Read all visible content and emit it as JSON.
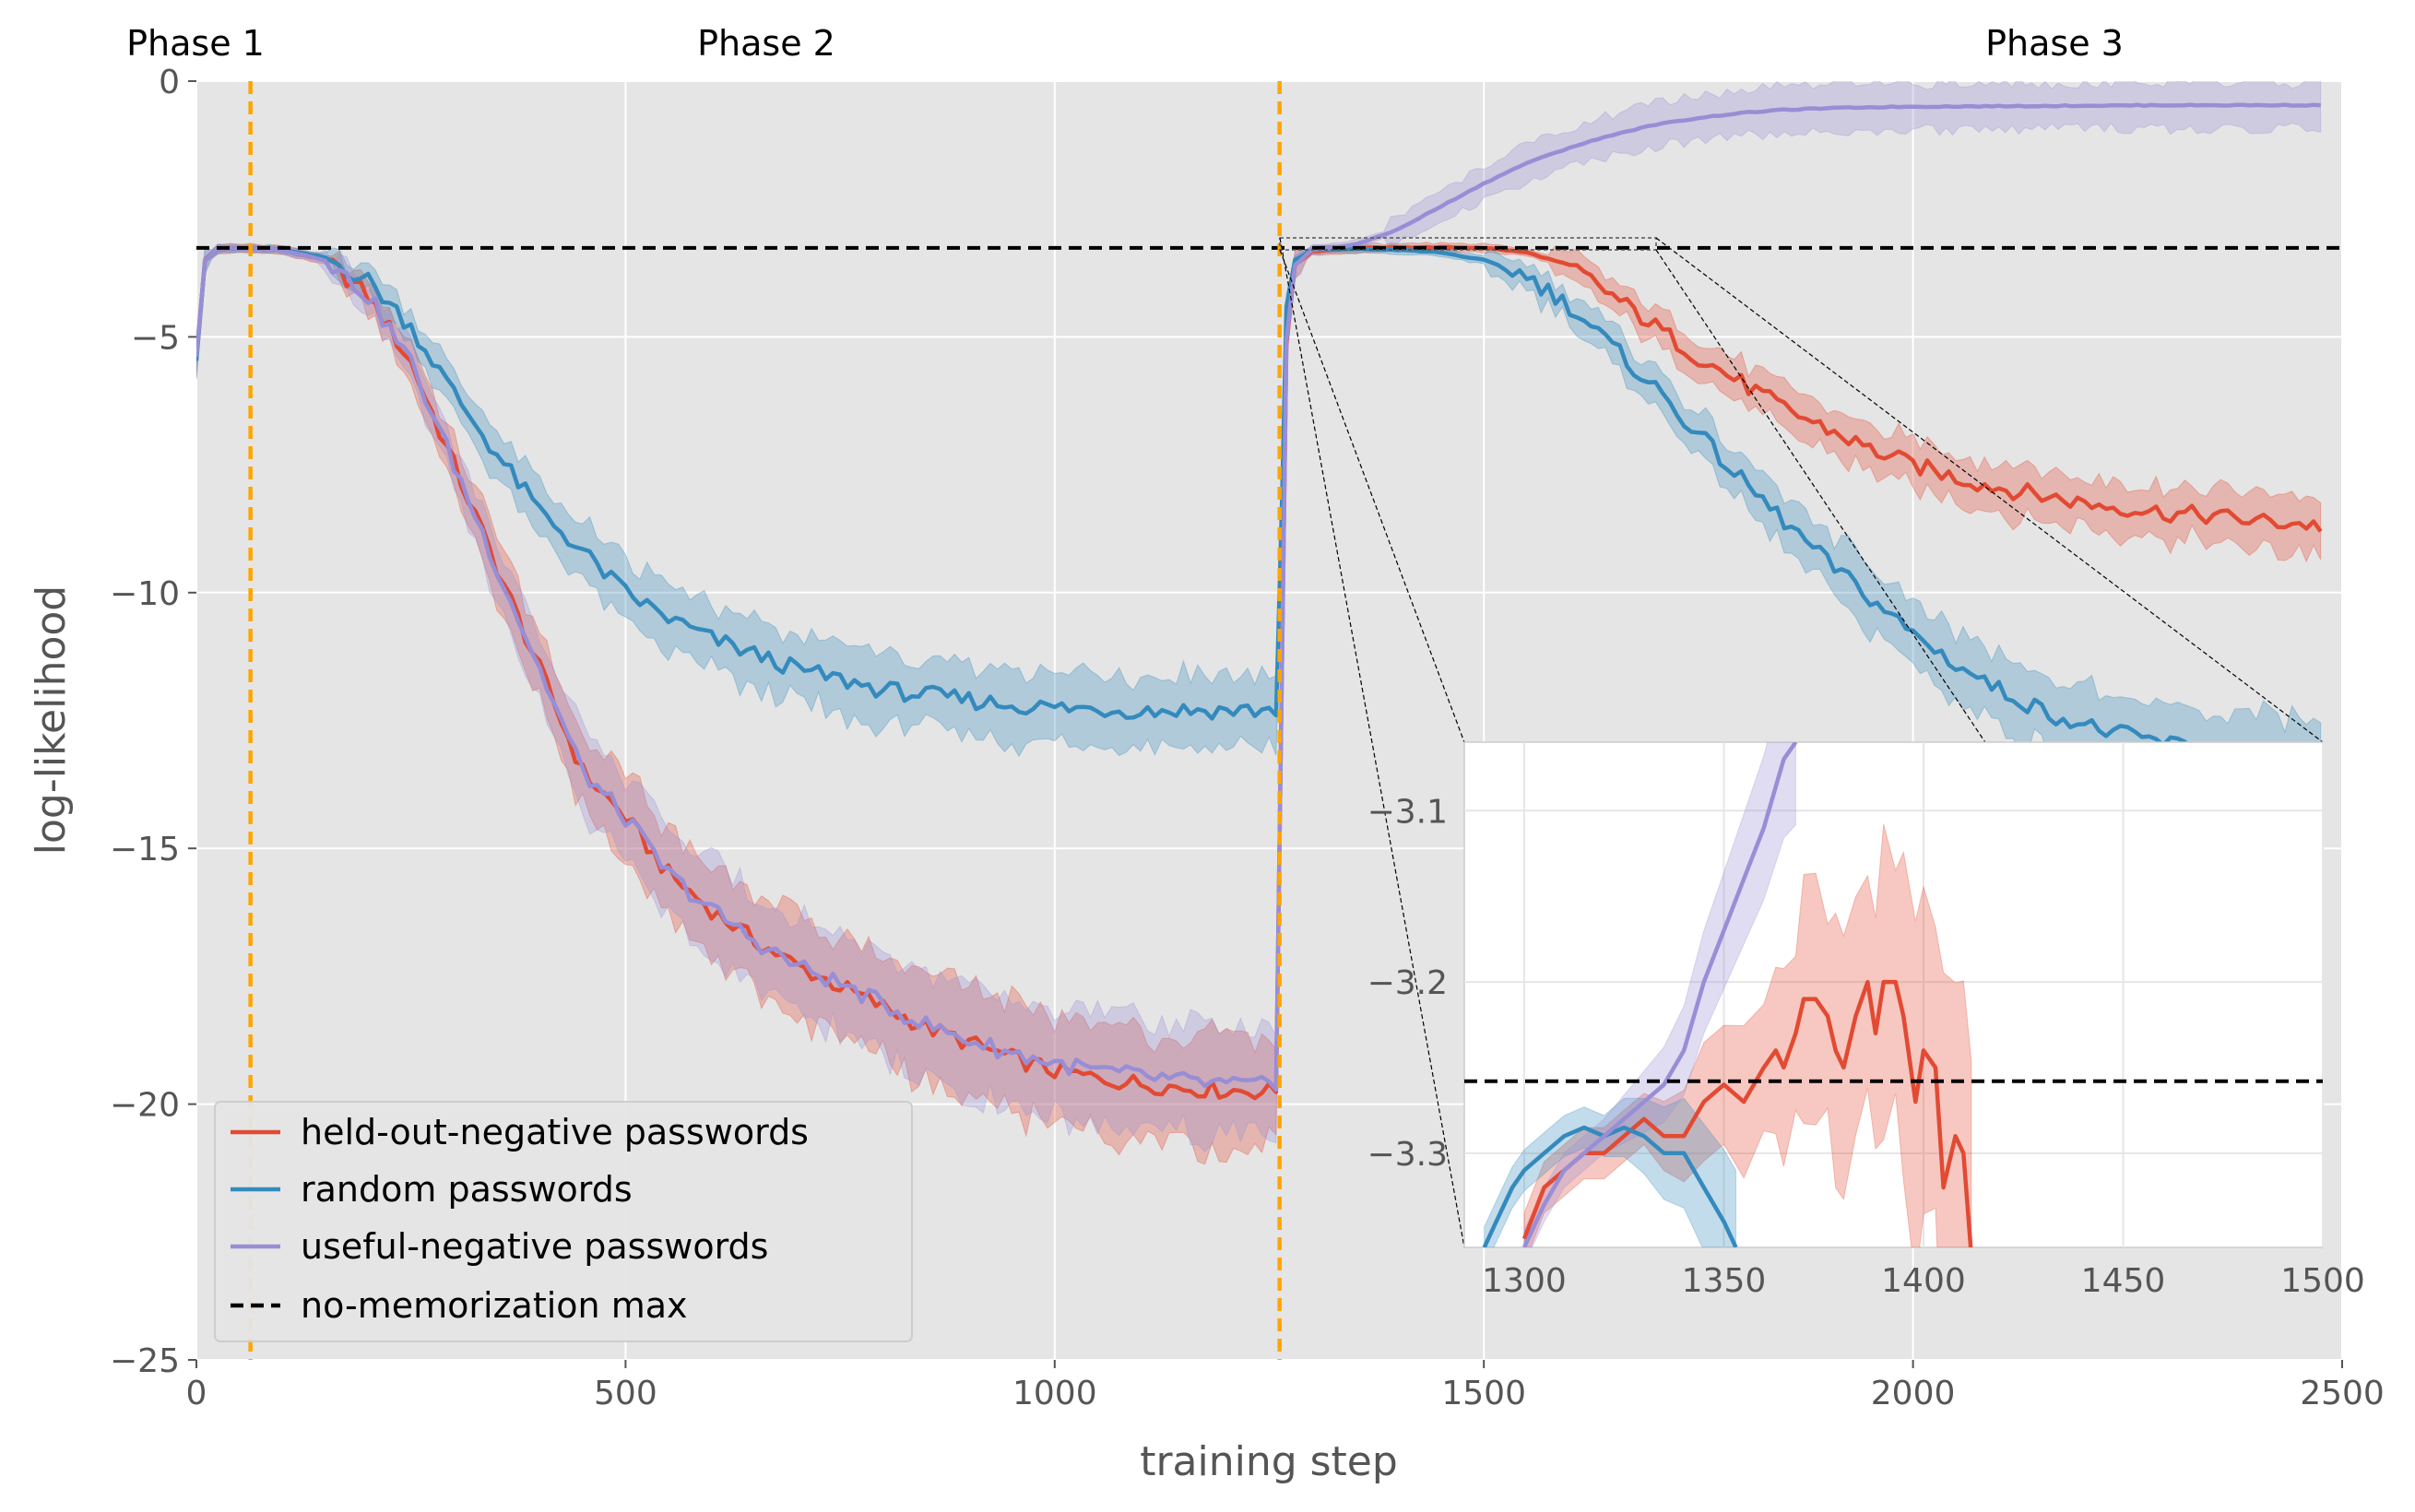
{
  "chart_data": {
    "type": "line",
    "xlabel": "training step",
    "ylabel": "log-likelihood",
    "xlim": [
      0,
      2500
    ],
    "ylim": [
      -25,
      0
    ],
    "x_ticks": [
      0,
      500,
      1000,
      1500,
      2000,
      2500
    ],
    "x_tick_labels": [
      "0",
      "500",
      "1000",
      "1500",
      "2000",
      "2500"
    ],
    "y_ticks": [
      0,
      -5,
      -10,
      -15,
      -20,
      -25
    ],
    "y_tick_labels": [
      "0",
      "−5",
      "−10",
      "−15",
      "−20",
      "−25"
    ],
    "grid": true,
    "phases": [
      {
        "label": "Phase 1",
        "x": 30
      },
      {
        "label": "Phase 2",
        "x": 664
      },
      {
        "label": "Phase 3",
        "x": 2162
      }
    ],
    "phase_boundaries": [
      63,
      1262
    ],
    "no_memorization_max": -3.26,
    "legend_position": "lower-left",
    "series": [
      {
        "name": "held-out-negative passwords",
        "color": "#E24A33",
        "points": [
          [
            0,
            -5.3
          ],
          [
            10,
            -3.5
          ],
          [
            25,
            -3.28
          ],
          [
            63,
            -3.27
          ],
          [
            100,
            -3.3
          ],
          [
            150,
            -3.5
          ],
          [
            200,
            -4.2
          ],
          [
            250,
            -5.5
          ],
          [
            300,
            -7.5
          ],
          [
            350,
            -9.5
          ],
          [
            400,
            -11.5
          ],
          [
            450,
            -13.5
          ],
          [
            500,
            -14.4
          ],
          [
            550,
            -15.5
          ],
          [
            600,
            -16.2
          ],
          [
            650,
            -16.8
          ],
          [
            700,
            -17.3
          ],
          [
            750,
            -17.7
          ],
          [
            800,
            -18.1
          ],
          [
            850,
            -18.5
          ],
          [
            900,
            -18.8
          ],
          [
            950,
            -19.1
          ],
          [
            1000,
            -19.35
          ],
          [
            1050,
            -19.5
          ],
          [
            1100,
            -19.6
          ],
          [
            1150,
            -19.68
          ],
          [
            1200,
            -19.73
          ],
          [
            1258,
            -19.75
          ],
          [
            1265,
            -11.0
          ],
          [
            1270,
            -5.0
          ],
          [
            1280,
            -3.6
          ],
          [
            1300,
            -3.32
          ],
          [
            1350,
            -3.27
          ],
          [
            1400,
            -3.25
          ],
          [
            1450,
            -3.25
          ],
          [
            1500,
            -3.26
          ],
          [
            1550,
            -3.35
          ],
          [
            1600,
            -3.6
          ],
          [
            1650,
            -4.2
          ],
          [
            1700,
            -4.8
          ],
          [
            1750,
            -5.4
          ],
          [
            1800,
            -5.9
          ],
          [
            1850,
            -6.4
          ],
          [
            1900,
            -6.8
          ],
          [
            1950,
            -7.2
          ],
          [
            2000,
            -7.5
          ],
          [
            2050,
            -7.75
          ],
          [
            2100,
            -7.95
          ],
          [
            2150,
            -8.1
          ],
          [
            2200,
            -8.25
          ],
          [
            2250,
            -8.35
          ],
          [
            2300,
            -8.45
          ],
          [
            2350,
            -8.5
          ],
          [
            2400,
            -8.6
          ],
          [
            2450,
            -8.65
          ],
          [
            2475,
            -8.7
          ]
        ]
      },
      {
        "name": "random passwords",
        "color": "#348ABD",
        "points": [
          [
            0,
            -5.3
          ],
          [
            10,
            -3.5
          ],
          [
            25,
            -3.28
          ],
          [
            63,
            -3.27
          ],
          [
            100,
            -3.3
          ],
          [
            150,
            -3.45
          ],
          [
            200,
            -3.9
          ],
          [
            250,
            -4.8
          ],
          [
            300,
            -6.1
          ],
          [
            350,
            -7.3
          ],
          [
            400,
            -8.4
          ],
          [
            450,
            -9.2
          ],
          [
            500,
            -10.0
          ],
          [
            550,
            -10.5
          ],
          [
            600,
            -10.9
          ],
          [
            650,
            -11.2
          ],
          [
            700,
            -11.5
          ],
          [
            750,
            -11.7
          ],
          [
            800,
            -11.9
          ],
          [
            850,
            -12.0
          ],
          [
            900,
            -12.1
          ],
          [
            950,
            -12.2
          ],
          [
            1000,
            -12.25
          ],
          [
            1050,
            -12.28
          ],
          [
            1100,
            -12.3
          ],
          [
            1150,
            -12.3
          ],
          [
            1200,
            -12.3
          ],
          [
            1258,
            -12.3
          ],
          [
            1265,
            -8.0
          ],
          [
            1270,
            -4.5
          ],
          [
            1280,
            -3.5
          ],
          [
            1300,
            -3.3
          ],
          [
            1350,
            -3.28
          ],
          [
            1400,
            -3.3
          ],
          [
            1450,
            -3.35
          ],
          [
            1500,
            -3.5
          ],
          [
            1550,
            -3.8
          ],
          [
            1600,
            -4.4
          ],
          [
            1650,
            -5.2
          ],
          [
            1700,
            -6.0
          ],
          [
            1750,
            -6.9
          ],
          [
            1800,
            -7.8
          ],
          [
            1850,
            -8.6
          ],
          [
            1900,
            -9.4
          ],
          [
            1950,
            -10.1
          ],
          [
            2000,
            -10.8
          ],
          [
            2050,
            -11.4
          ],
          [
            2100,
            -11.9
          ],
          [
            2150,
            -12.3
          ],
          [
            2200,
            -12.6
          ],
          [
            2250,
            -12.8
          ],
          [
            2300,
            -12.95
          ],
          [
            2350,
            -13.05
          ],
          [
            2400,
            -13.1
          ],
          [
            2450,
            -13.2
          ],
          [
            2475,
            -13.25
          ]
        ]
      },
      {
        "name": "useful-negative passwords",
        "color": "#988ED5",
        "points": [
          [
            0,
            -5.3
          ],
          [
            10,
            -3.5
          ],
          [
            25,
            -3.28
          ],
          [
            63,
            -3.27
          ],
          [
            100,
            -3.3
          ],
          [
            150,
            -3.5
          ],
          [
            200,
            -4.2
          ],
          [
            250,
            -5.5
          ],
          [
            300,
            -7.5
          ],
          [
            350,
            -9.5
          ],
          [
            400,
            -11.5
          ],
          [
            450,
            -13.5
          ],
          [
            500,
            -14.4
          ],
          [
            550,
            -15.5
          ],
          [
            600,
            -16.2
          ],
          [
            650,
            -16.8
          ],
          [
            700,
            -17.3
          ],
          [
            750,
            -17.65
          ],
          [
            800,
            -18.05
          ],
          [
            850,
            -18.45
          ],
          [
            900,
            -18.75
          ],
          [
            950,
            -19.0
          ],
          [
            1000,
            -19.2
          ],
          [
            1050,
            -19.35
          ],
          [
            1100,
            -19.45
          ],
          [
            1150,
            -19.55
          ],
          [
            1200,
            -19.62
          ],
          [
            1258,
            -19.65
          ],
          [
            1265,
            -11.0
          ],
          [
            1270,
            -5.0
          ],
          [
            1280,
            -3.6
          ],
          [
            1300,
            -3.3
          ],
          [
            1350,
            -3.2
          ],
          [
            1400,
            -2.9
          ],
          [
            1450,
            -2.45
          ],
          [
            1500,
            -2.0
          ],
          [
            1550,
            -1.6
          ],
          [
            1600,
            -1.3
          ],
          [
            1650,
            -1.05
          ],
          [
            1700,
            -0.85
          ],
          [
            1750,
            -0.72
          ],
          [
            1800,
            -0.62
          ],
          [
            1850,
            -0.56
          ],
          [
            1900,
            -0.53
          ],
          [
            1950,
            -0.51
          ],
          [
            2000,
            -0.5
          ],
          [
            2100,
            -0.49
          ],
          [
            2200,
            -0.48
          ],
          [
            2300,
            -0.47
          ],
          [
            2400,
            -0.47
          ],
          [
            2475,
            -0.47
          ]
        ]
      },
      {
        "name": "no-memorization max",
        "color": "#000000",
        "style": "dashed",
        "points": [
          [
            0,
            -3.26
          ],
          [
            2500,
            -3.26
          ]
        ]
      }
    ],
    "inset": {
      "xlim": [
        1285,
        1500
      ],
      "ylim": [
        -3.355,
        -3.06
      ],
      "x_ticks": [
        1300,
        1350,
        1400,
        1450,
        1500
      ],
      "x_tick_labels": [
        "1300",
        "1350",
        "1400",
        "1450",
        "1500"
      ],
      "y_ticks": [
        -3.1,
        -3.2,
        -3.3
      ],
      "y_tick_labels": [
        "−3.1",
        "−3.2",
        "−3.3"
      ],
      "series": [
        {
          "name": "held-out-negative passwords",
          "points": [
            [
              1300,
              -3.35
            ],
            [
              1305,
              -3.32
            ],
            [
              1310,
              -3.31
            ],
            [
              1315,
              -3.3
            ],
            [
              1320,
              -3.3
            ],
            [
              1325,
              -3.29
            ],
            [
              1330,
              -3.28
            ],
            [
              1335,
              -3.29
            ],
            [
              1340,
              -3.29
            ],
            [
              1345,
              -3.27
            ],
            [
              1350,
              -3.26
            ],
            [
              1355,
              -3.27
            ],
            [
              1360,
              -3.25
            ],
            [
              1363,
              -3.24
            ],
            [
              1365,
              -3.25
            ],
            [
              1368,
              -3.23
            ],
            [
              1370,
              -3.21
            ],
            [
              1373,
              -3.21
            ],
            [
              1376,
              -3.22
            ],
            [
              1378,
              -3.24
            ],
            [
              1380,
              -3.25
            ],
            [
              1383,
              -3.22
            ],
            [
              1386,
              -3.2
            ],
            [
              1388,
              -3.23
            ],
            [
              1390,
              -3.2
            ],
            [
              1393,
              -3.2
            ],
            [
              1395,
              -3.22
            ],
            [
              1398,
              -3.27
            ],
            [
              1400,
              -3.24
            ],
            [
              1403,
              -3.25
            ],
            [
              1405,
              -3.32
            ],
            [
              1408,
              -3.29
            ],
            [
              1410,
              -3.3
            ],
            [
              1412,
              -3.36
            ]
          ]
        },
        {
          "name": "random passwords",
          "points": [
            [
              1290,
              -3.355
            ],
            [
              1293,
              -3.34
            ],
            [
              1297,
              -3.32
            ],
            [
              1300,
              -3.31
            ],
            [
              1305,
              -3.3
            ],
            [
              1310,
              -3.29
            ],
            [
              1315,
              -3.285
            ],
            [
              1320,
              -3.29
            ],
            [
              1325,
              -3.285
            ],
            [
              1330,
              -3.29
            ],
            [
              1335,
              -3.3
            ],
            [
              1340,
              -3.3
            ],
            [
              1345,
              -3.32
            ],
            [
              1350,
              -3.34
            ],
            [
              1353,
              -3.355
            ]
          ]
        },
        {
          "name": "useful-negative passwords",
          "points": [
            [
              1300,
              -3.355
            ],
            [
              1305,
              -3.33
            ],
            [
              1310,
              -3.31
            ],
            [
              1315,
              -3.3
            ],
            [
              1320,
              -3.29
            ],
            [
              1325,
              -3.28
            ],
            [
              1330,
              -3.27
            ],
            [
              1335,
              -3.26
            ],
            [
              1340,
              -3.24
            ],
            [
              1345,
              -3.2
            ],
            [
              1350,
              -3.17
            ],
            [
              1355,
              -3.14
            ],
            [
              1360,
              -3.11
            ],
            [
              1365,
              -3.07
            ],
            [
              1368,
              -3.06
            ]
          ]
        },
        {
          "name": "no-memorization max",
          "points": [
            [
              1285,
              -3.258
            ],
            [
              1500,
              -3.258
            ]
          ]
        }
      ]
    }
  }
}
